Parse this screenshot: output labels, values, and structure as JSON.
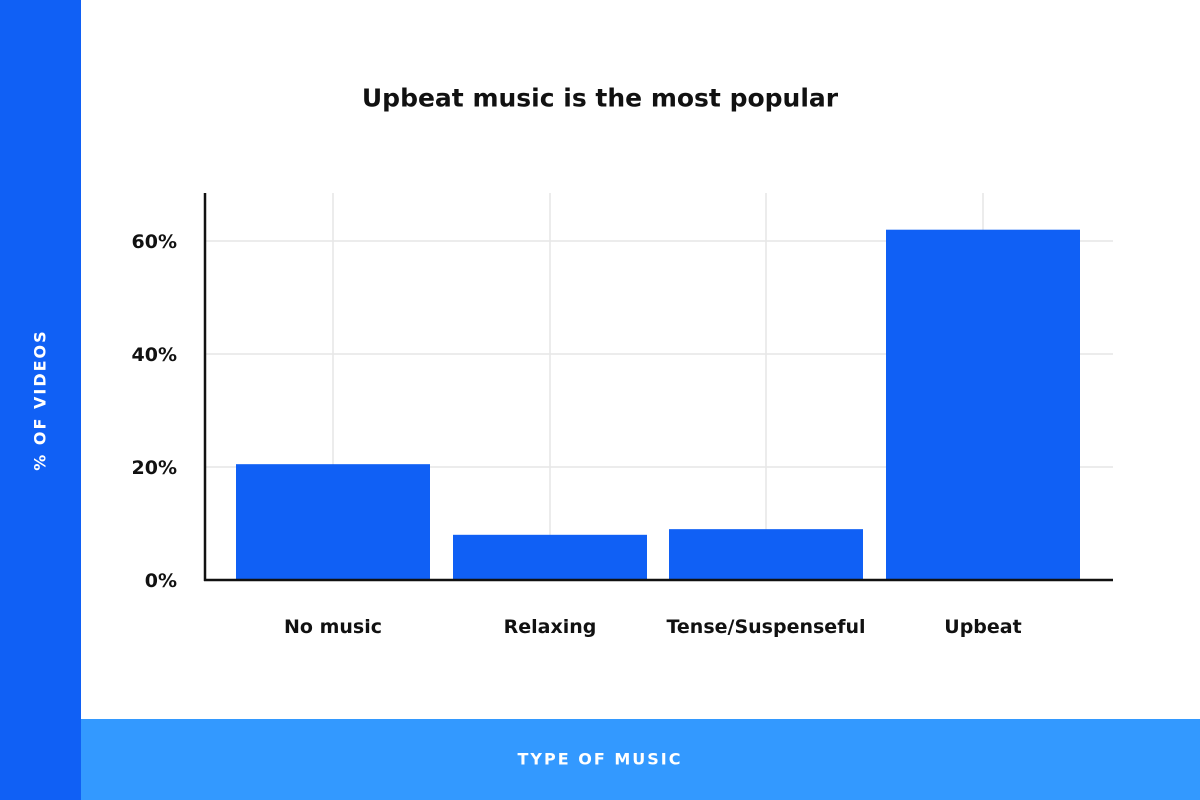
{
  "colors": {
    "bar": "#1060f5",
    "y_band": "#1060f5",
    "x_band": "#3399ff",
    "grid": "#e6e6e6",
    "axis": "#111111",
    "text": "#111111"
  },
  "chart_data": {
    "type": "bar",
    "title": "Upbeat music is the most popular",
    "xlabel": "TYPE OF MUSIC",
    "ylabel": "% OF VIDEOS",
    "categories": [
      "No music",
      "Relaxing",
      "Tense/Suspenseful",
      "Upbeat"
    ],
    "values": [
      20.5,
      8,
      9,
      62
    ],
    "ylim": [
      0,
      70
    ],
    "yticks": [
      0,
      20,
      40,
      60
    ],
    "ytick_labels": [
      "0%",
      "20%",
      "40%",
      "60%"
    ],
    "grid": true,
    "legend": "none"
  }
}
